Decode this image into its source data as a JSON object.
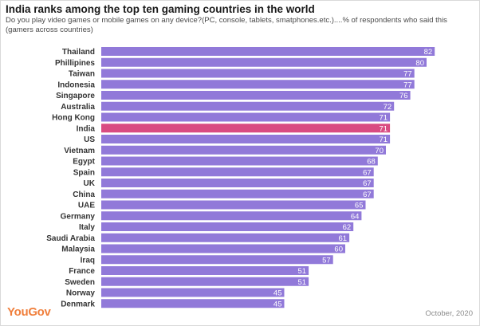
{
  "header": {
    "title": "India ranks among the top ten gaming countries in the world",
    "subtitle": "Do you play video games or mobile games on any device?(PC, console, tablets, smatphones.etc.)....% of respondents who said this (gamers across countries)"
  },
  "footer": {
    "brand": "YouGov",
    "date": "October, 2020"
  },
  "colors": {
    "bar": "#9179d9",
    "highlight": "#d94b82",
    "brand": "#f07f3c"
  },
  "chart_data": {
    "type": "bar",
    "orientation": "horizontal",
    "title": "India ranks among the top ten gaming countries in the world",
    "categories": [
      "Thailand",
      "Phillipines",
      "Taiwan",
      "Indonesia",
      "Singapore",
      "Australia",
      "Hong Kong",
      "India",
      "US",
      "Vietnam",
      "Egypt",
      "Spain",
      "UK",
      "China",
      "UAE",
      "Germany",
      "Italy",
      "Saudi Arabia",
      "Malaysia",
      "Iraq",
      "France",
      "Sweden",
      "Norway",
      "Denmark"
    ],
    "values": [
      82,
      80,
      77,
      77,
      76,
      72,
      71,
      71,
      71,
      70,
      68,
      67,
      67,
      67,
      65,
      64,
      62,
      61,
      60,
      57,
      51,
      51,
      45,
      45
    ],
    "highlight": "India",
    "xlim": [
      0,
      100
    ],
    "grid": false,
    "data_labels": true
  }
}
